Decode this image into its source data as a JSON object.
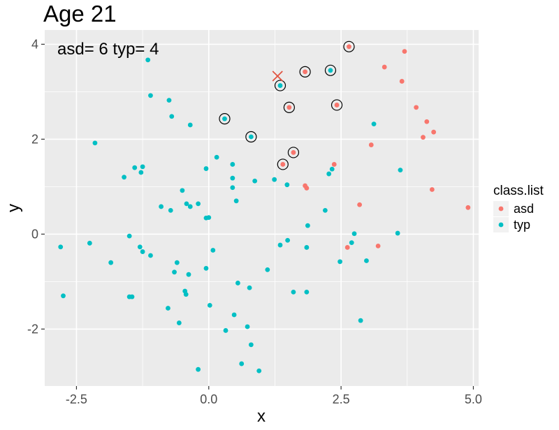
{
  "chart_data": {
    "type": "scatter",
    "title": "Age  21",
    "annotation": "asd= 6 typ= 4",
    "xlabel": "x",
    "ylabel": "y",
    "xlim": [
      -3.1,
      5.1
    ],
    "ylim": [
      -3.2,
      4.3
    ],
    "x_ticks": [
      -2.5,
      0.0,
      2.5,
      5.0
    ],
    "x_tick_labels": [
      "-2.5",
      "0.0",
      "2.5",
      "5.0"
    ],
    "y_ticks": [
      -2,
      0,
      2,
      4
    ],
    "y_tick_labels": [
      "-2",
      "0",
      "2",
      "4"
    ],
    "grid": true,
    "legend": {
      "title": "class.list",
      "position": "right",
      "entries": [
        {
          "name": "asd",
          "color": "#F8766D"
        },
        {
          "name": "typ",
          "color": "#00BFC4"
        }
      ]
    },
    "colors": {
      "asd": "#F8766D",
      "typ": "#00BFC4",
      "panel": "#EBEBEB",
      "grid": "#FFFFFF",
      "cross": "#E0533F"
    },
    "cross_marker": {
      "x": 1.3,
      "y": 3.33
    },
    "series": [
      {
        "name": "asd",
        "points": [
          [
            2.65,
            3.95
          ],
          [
            3.7,
            3.85
          ],
          [
            3.32,
            3.52
          ],
          [
            1.82,
            3.42
          ],
          [
            3.65,
            3.22
          ],
          [
            2.42,
            2.72
          ],
          [
            1.52,
            2.67
          ],
          [
            3.92,
            2.67
          ],
          [
            4.12,
            2.37
          ],
          [
            4.25,
            2.15
          ],
          [
            4.05,
            2.04
          ],
          [
            3.07,
            1.88
          ],
          [
            1.6,
            1.72
          ],
          [
            1.4,
            1.47
          ],
          [
            2.37,
            1.47
          ],
          [
            1.82,
            1.02
          ],
          [
            1.85,
            0.97
          ],
          [
            4.22,
            0.94
          ],
          [
            2.85,
            0.62
          ],
          [
            4.9,
            0.56
          ],
          [
            2.62,
            -0.28
          ],
          [
            3.2,
            -0.25
          ]
        ]
      },
      {
        "name": "typ",
        "points": [
          [
            -1.15,
            3.67
          ],
          [
            -1.1,
            2.92
          ],
          [
            -0.75,
            2.82
          ],
          [
            -0.7,
            2.48
          ],
          [
            -0.35,
            2.3
          ],
          [
            -2.15,
            1.92
          ],
          [
            1.35,
            3.13
          ],
          [
            2.3,
            3.45
          ],
          [
            0.3,
            2.43
          ],
          [
            0.8,
            2.05
          ],
          [
            3.12,
            2.32
          ],
          [
            0.15,
            1.62
          ],
          [
            0.45,
            1.47
          ],
          [
            -0.05,
            1.38
          ],
          [
            -1.4,
            1.4
          ],
          [
            -1.25,
            1.42
          ],
          [
            -1.28,
            1.3
          ],
          [
            -1.6,
            1.2
          ],
          [
            0.45,
            1.18
          ],
          [
            0.87,
            1.12
          ],
          [
            1.24,
            1.15
          ],
          [
            1.48,
            1.04
          ],
          [
            2.33,
            1.37
          ],
          [
            2.27,
            1.27
          ],
          [
            3.62,
            1.35
          ],
          [
            0.45,
            0.98
          ],
          [
            -0.5,
            0.92
          ],
          [
            -0.2,
            0.64
          ],
          [
            -0.42,
            0.64
          ],
          [
            -0.35,
            0.58
          ],
          [
            -0.9,
            0.58
          ],
          [
            -0.72,
            0.5
          ],
          [
            0.52,
            0.7
          ],
          [
            -0.05,
            0.34
          ],
          [
            0.0,
            0.35
          ],
          [
            2.2,
            0.5
          ],
          [
            1.87,
            0.18
          ],
          [
            2.75,
            0.01
          ],
          [
            3.57,
            0.02
          ],
          [
            -2.8,
            -0.27
          ],
          [
            -2.25,
            -0.19
          ],
          [
            -1.5,
            -0.04
          ],
          [
            -1.3,
            -0.27
          ],
          [
            -1.25,
            -0.37
          ],
          [
            -1.1,
            -0.45
          ],
          [
            -1.85,
            -0.6
          ],
          [
            0.08,
            -0.34
          ],
          [
            1.35,
            -0.23
          ],
          [
            1.49,
            -0.13
          ],
          [
            1.85,
            -0.28
          ],
          [
            2.7,
            -0.18
          ],
          [
            2.48,
            -0.58
          ],
          [
            2.98,
            -0.56
          ],
          [
            -0.6,
            -0.6
          ],
          [
            -0.65,
            -0.8
          ],
          [
            -0.38,
            -0.85
          ],
          [
            -0.05,
            -0.72
          ],
          [
            1.11,
            -0.75
          ],
          [
            0.55,
            -1.03
          ],
          [
            0.77,
            -1.13
          ],
          [
            -0.45,
            -1.2
          ],
          [
            -0.43,
            -1.27
          ],
          [
            -1.5,
            -1.32
          ],
          [
            -1.45,
            -1.32
          ],
          [
            1.6,
            -1.22
          ],
          [
            1.85,
            -1.22
          ],
          [
            -2.75,
            -1.3
          ],
          [
            0.02,
            -1.5
          ],
          [
            -0.77,
            -1.56
          ],
          [
            0.48,
            -1.7
          ],
          [
            -0.56,
            -1.87
          ],
          [
            2.87,
            -1.82
          ],
          [
            0.73,
            -1.95
          ],
          [
            0.32,
            -2.03
          ],
          [
            0.8,
            -2.33
          ],
          [
            0.62,
            -2.73
          ],
          [
            -0.2,
            -2.85
          ],
          [
            0.95,
            -2.88
          ]
        ]
      }
    ],
    "highlighted_points": [
      [
        2.65,
        3.95
      ],
      [
        1.82,
        3.42
      ],
      [
        2.42,
        2.72
      ],
      [
        1.52,
        2.67
      ],
      [
        1.6,
        1.72
      ],
      [
        1.4,
        1.47
      ],
      [
        1.35,
        3.13
      ],
      [
        2.3,
        3.45
      ],
      [
        0.3,
        2.43
      ],
      [
        0.8,
        2.05
      ]
    ]
  }
}
